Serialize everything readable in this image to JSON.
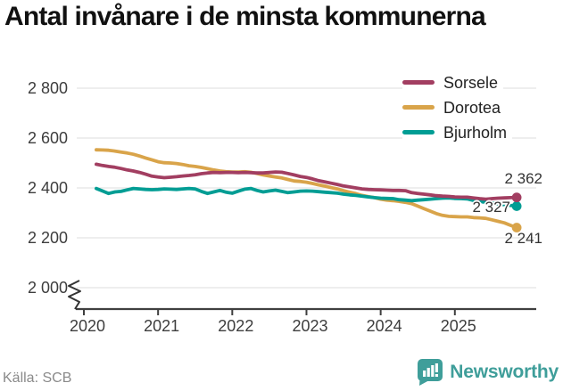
{
  "title": "Antal invånare i de minsta kommunerna",
  "source": "Källa: SCB",
  "branding": {
    "name": "Newsworthy",
    "color": "#3f9e9a"
  },
  "chart_data": {
    "type": "line",
    "title": "Antal invånare i de minsta kommunerna",
    "xlabel": "",
    "ylabel": "",
    "x_interval": "monthly",
    "x_start": "2020-03",
    "x_end": "2025-11",
    "x_tick_labels": [
      "2020",
      "2021",
      "2022",
      "2023",
      "2024",
      "2025"
    ],
    "y_ticks": [
      2800,
      2600,
      2400,
      2200,
      2000
    ],
    "y_tick_labels": [
      "2 800",
      "2 600",
      "2 400",
      "2 200",
      "2 000"
    ],
    "ylim": [
      2000,
      2800
    ],
    "y_axis_break": true,
    "grid": "horizontal",
    "legend_position": "top-right",
    "colors": {
      "grid": "#e4e4e4",
      "axis": "#3f3f3f",
      "text": "#3d3d3d"
    },
    "series": [
      {
        "name": "Sorsele",
        "color": "#a23e61",
        "end_label": "2 362",
        "last_value": 2362,
        "values": [
          2495,
          2490,
          2486,
          2483,
          2478,
          2472,
          2468,
          2462,
          2455,
          2447,
          2444,
          2441,
          2443,
          2445,
          2448,
          2450,
          2453,
          2457,
          2460,
          2462,
          2461,
          2462,
          2462,
          2461,
          2462,
          2461,
          2460,
          2460,
          2462,
          2464,
          2463,
          2458,
          2452,
          2446,
          2442,
          2436,
          2429,
          2424,
          2419,
          2414,
          2408,
          2404,
          2400,
          2396,
          2394,
          2393,
          2392,
          2391,
          2390,
          2390,
          2389,
          2381,
          2378,
          2375,
          2372,
          2369,
          2367,
          2366,
          2364,
          2363,
          2363,
          2360,
          2357,
          2355,
          2357,
          2359,
          2360,
          2361,
          2362
        ]
      },
      {
        "name": "Dorotea",
        "color": "#d9a44a",
        "end_label": "2 241",
        "last_value": 2241,
        "values": [
          2553,
          2552,
          2551,
          2548,
          2544,
          2540,
          2535,
          2528,
          2520,
          2513,
          2505,
          2501,
          2500,
          2498,
          2494,
          2489,
          2486,
          2482,
          2477,
          2472,
          2468,
          2465,
          2464,
          2464,
          2465,
          2463,
          2458,
          2452,
          2448,
          2444,
          2440,
          2434,
          2428,
          2426,
          2423,
          2418,
          2412,
          2407,
          2401,
          2396,
          2389,
          2383,
          2377,
          2370,
          2365,
          2361,
          2355,
          2351,
          2349,
          2346,
          2342,
          2337,
          2327,
          2317,
          2307,
          2297,
          2290,
          2286,
          2285,
          2284,
          2284,
          2281,
          2280,
          2278,
          2272,
          2266,
          2260,
          2250,
          2241
        ]
      },
      {
        "name": "Bjurholm",
        "color": "#009d94",
        "end_label": "2 327",
        "last_value": 2327,
        "values": [
          2398,
          2388,
          2378,
          2384,
          2386,
          2392,
          2398,
          2396,
          2394,
          2393,
          2394,
          2396,
          2395,
          2394,
          2396,
          2398,
          2396,
          2386,
          2378,
          2384,
          2390,
          2383,
          2379,
          2387,
          2395,
          2398,
          2390,
          2384,
          2388,
          2391,
          2386,
          2381,
          2384,
          2387,
          2388,
          2387,
          2385,
          2383,
          2381,
          2379,
          2375,
          2372,
          2370,
          2367,
          2364,
          2361,
          2359,
          2358,
          2357,
          2353,
          2351,
          2349,
          2351,
          2353,
          2355,
          2357,
          2359,
          2360,
          2358,
          2357,
          2356,
          2350,
          2346,
          2342,
          2339,
          2336,
          2333,
          2330,
          2327
        ]
      }
    ]
  }
}
